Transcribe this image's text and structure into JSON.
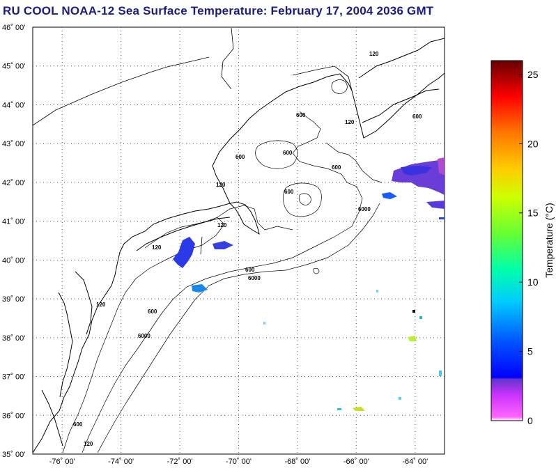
{
  "title": "RU COOL  NOAA-12  Sea Surface Temperature:  February 17, 2004 2036 GMT",
  "map": {
    "lat_labels": [
      "46˚ 00'",
      "45˚ 00'",
      "44˚ 00'",
      "43˚ 00'",
      "42˚ 00'",
      "41˚ 00'",
      "40˚ 00'",
      "39˚ 00'",
      "38˚ 00'",
      "37˚ 00'",
      "36˚ 00'",
      "35˚ 00'"
    ],
    "lon_labels": [
      "-76˚ 00'",
      "-74˚ 00'",
      "-72˚ 00'",
      "-70˚ 00'",
      "-68˚ 00'",
      "-66˚ 00'",
      "-64˚ 00'"
    ],
    "lat_range": [
      35,
      46
    ],
    "lon_range": [
      -77,
      -63
    ],
    "grid": "dotted",
    "contour_labels": [
      "120",
      "600",
      "6000"
    ],
    "land_color": "#ffffff",
    "coast_color": "#000000"
  },
  "colorbar": {
    "label": "Temperature (°C)",
    "ticks": [
      "25",
      "20",
      "15",
      "10",
      "5",
      "0"
    ],
    "range": [
      0,
      26
    ]
  }
}
